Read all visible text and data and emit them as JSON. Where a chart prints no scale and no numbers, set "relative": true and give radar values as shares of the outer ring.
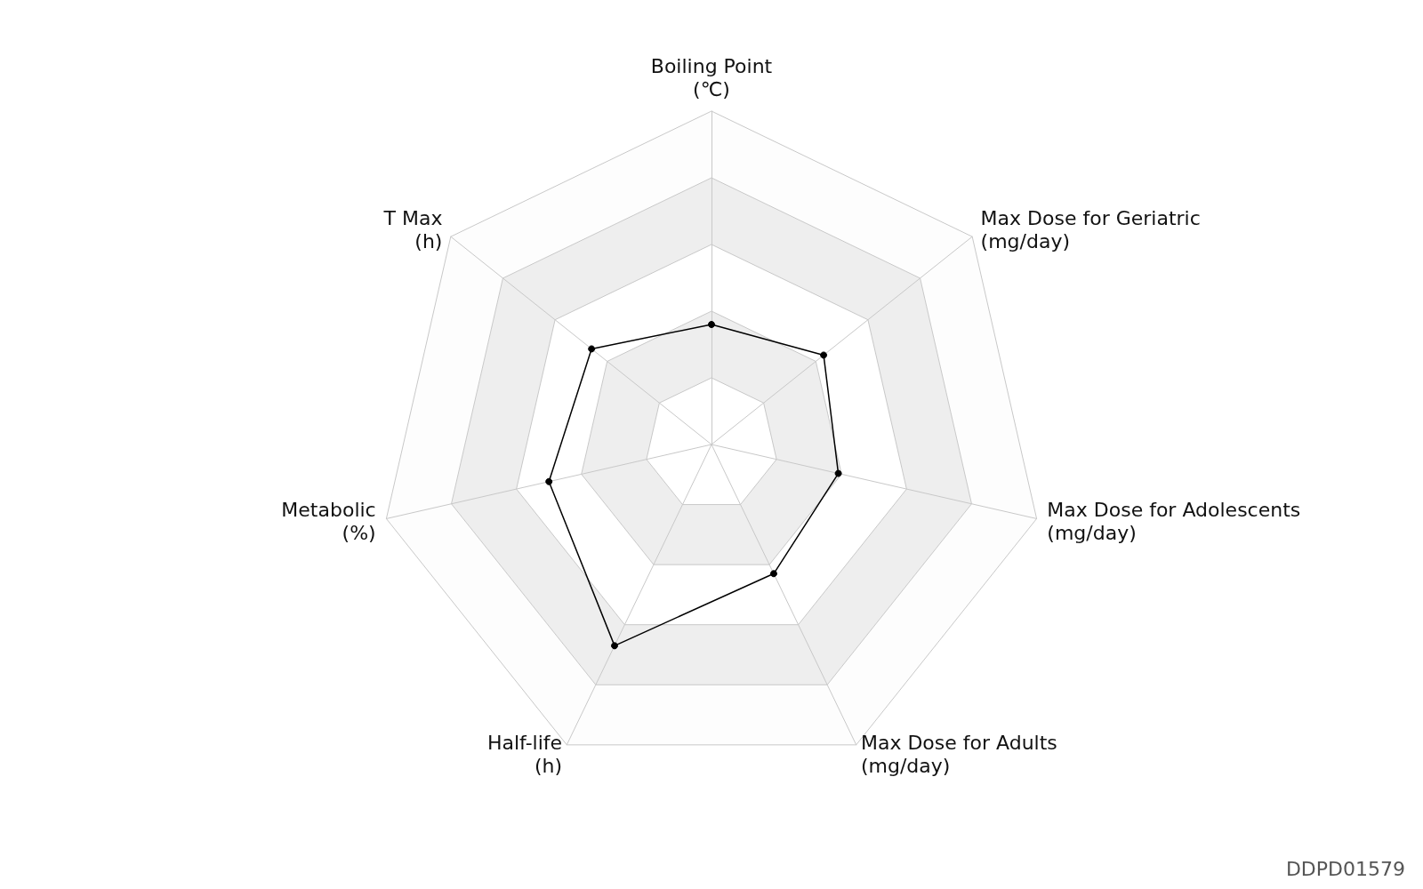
{
  "chart_data": {
    "type": "radar",
    "relative": true,
    "categories": [
      "Boiling Point\n(℃)",
      "Max Dose for Geriatric\n(mg/day)",
      "Max Dose for Adolescents\n(mg/day)",
      "Max Dose for Adults\n(mg/day)",
      "Half-life\n(h)",
      "Metabolic\n(%)",
      "T Max\n(h)"
    ],
    "series": [
      {
        "color": "#000000",
        "values": [
          0.36,
          0.43,
          0.39,
          0.43,
          0.67,
          0.5,
          0.46
        ]
      }
    ],
    "marker": "circle",
    "annotations": [
      "DDPD01579"
    ]
  }
}
